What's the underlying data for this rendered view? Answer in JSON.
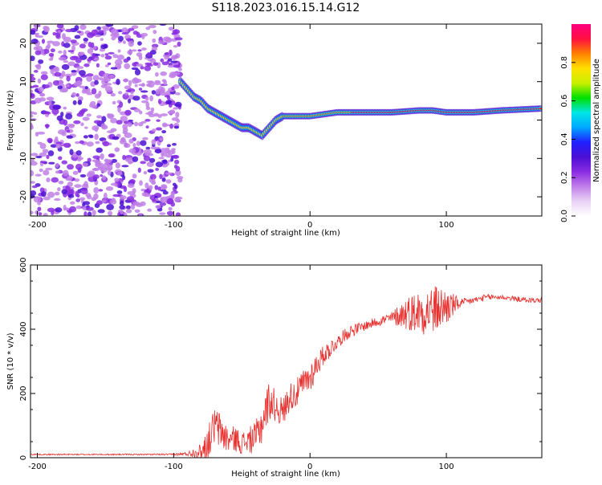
{
  "title": "S118.2023.016.15.14.G12",
  "colors": {
    "snr_line": "#e8312f",
    "axis": "#000000",
    "colormap": [
      "#ffffff",
      "#e9d2f5",
      "#c07fe8",
      "#8a2be2",
      "#4b0fd4",
      "#2020ff",
      "#00a8ff",
      "#00e6e6",
      "#00e000",
      "#c8f000",
      "#ffe000",
      "#ff8000",
      "#ff1040",
      "#ff0080"
    ]
  },
  "chart_data": [
    {
      "type": "heatmap",
      "xlabel": "Height of straight line (km)",
      "ylabel": "Frequency (Hz)",
      "xlim": [
        -205,
        170
      ],
      "ylim": [
        -25,
        25
      ],
      "xticks": [
        -200,
        -100,
        0,
        100
      ],
      "yticks": [
        -20,
        -10,
        0,
        10,
        20
      ],
      "noise_region_x": [
        -205,
        -95
      ],
      "signal_track": {
        "x": [
          -95,
          -90,
          -85,
          -80,
          -75,
          -70,
          -65,
          -60,
          -55,
          -50,
          -45,
          -40,
          -35,
          -30,
          -25,
          -20,
          -10,
          0,
          20,
          40,
          60,
          80,
          90,
          100,
          120,
          140,
          170
        ],
        "freq": [
          10,
          8,
          6,
          5,
          3,
          2,
          1,
          0,
          -1,
          -2,
          -2,
          -3,
          -4,
          -2,
          0,
          1,
          1,
          1,
          2,
          2,
          2,
          2.5,
          2.5,
          2,
          2,
          2.5,
          3
        ]
      },
      "colorbar": {
        "label": "Normalized spectral amplitude",
        "range": [
          0,
          1
        ],
        "ticks": [
          0.0,
          0.2,
          0.4,
          0.6,
          0.8
        ]
      }
    },
    {
      "type": "line",
      "xlabel": "Height of straight line (km)",
      "ylabel": "SNR (10 * v/v)",
      "xlim": [
        -205,
        170
      ],
      "ylim": [
        0,
        600
      ],
      "xticks": [
        -200,
        -100,
        0,
        100
      ],
      "yticks": [
        0,
        200,
        400,
        600
      ],
      "series": [
        {
          "x": [
            -205,
            -180,
            -150,
            -120,
            -100,
            -90,
            -80,
            -75,
            -70,
            -65,
            -60,
            -55,
            -50,
            -45,
            -40,
            -35,
            -30,
            -25,
            -20,
            -15,
            -10,
            -5,
            0,
            5,
            10,
            15,
            20,
            25,
            30,
            40,
            50,
            60,
            70,
            80,
            90,
            100,
            110,
            120,
            130,
            140,
            150,
            160,
            170
          ],
          "values": [
            10,
            10,
            10,
            10,
            10,
            12,
            20,
            45,
            100,
            80,
            55,
            60,
            45,
            55,
            60,
            110,
            180,
            160,
            140,
            190,
            200,
            230,
            250,
            290,
            320,
            340,
            360,
            380,
            395,
            410,
            425,
            435,
            450,
            455,
            460,
            470,
            480,
            490,
            500,
            500,
            495,
            490,
            490
          ],
          "noise": [
            2,
            2,
            2,
            2,
            3,
            6,
            25,
            50,
            60,
            60,
            40,
            40,
            35,
            40,
            50,
            70,
            60,
            50,
            45,
            45,
            45,
            45,
            50,
            40,
            30,
            30,
            20,
            20,
            20,
            15,
            15,
            20,
            50,
            70,
            80,
            60,
            15,
            10,
            10,
            8,
            8,
            8,
            8
          ]
        }
      ]
    }
  ]
}
